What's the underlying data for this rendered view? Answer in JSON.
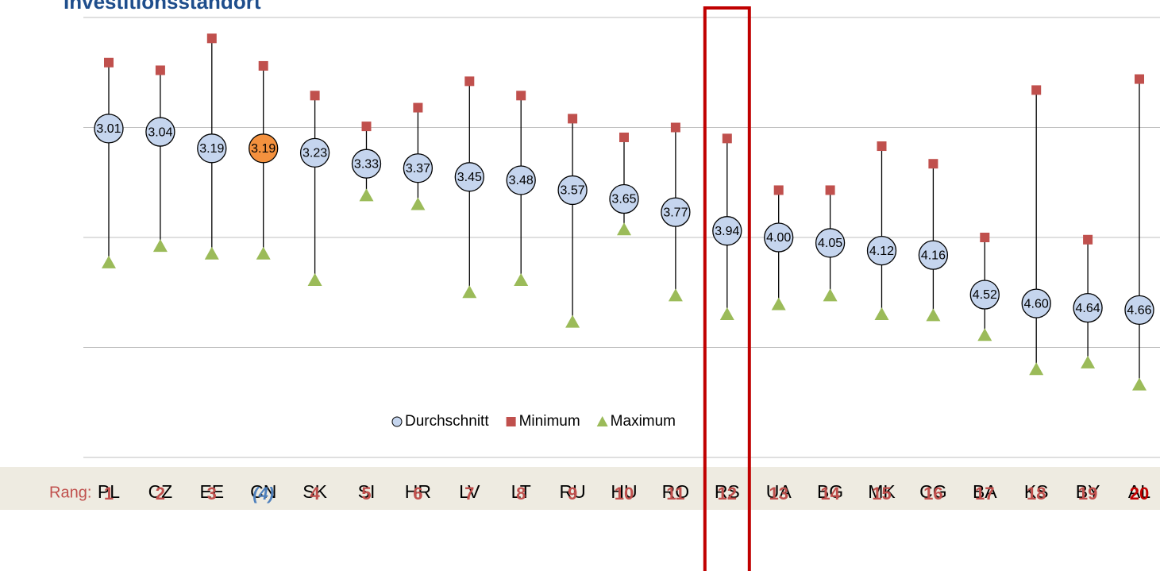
{
  "chart_data": {
    "type": "range-dot",
    "title": "Investitionsstandort",
    "categories": [
      "PL",
      "CZ",
      "EE",
      "CN",
      "SK",
      "SI",
      "HR",
      "LV",
      "LT",
      "RU",
      "HU",
      "RO",
      "RS",
      "UA",
      "BG",
      "MK",
      "CG",
      "BA",
      "KS",
      "BY",
      "AL"
    ],
    "series": [
      {
        "name": "Durchschnitt",
        "color": "#c5d5ee",
        "marker": "circle",
        "point_colors": [
          "#c5d5ee",
          "#c5d5ee",
          "#c5d5ee",
          "#f4913e",
          "#c5d5ee",
          "#c5d5ee",
          "#c5d5ee",
          "#c5d5ee",
          "#c5d5ee",
          "#c5d5ee",
          "#c5d5ee",
          "#c5d5ee",
          "#c5d5ee",
          "#c5d5ee",
          "#c5d5ee",
          "#c5d5ee",
          "#c5d5ee",
          "#c5d5ee",
          "#c5d5ee",
          "#c5d5ee",
          "#c5d5ee"
        ],
        "values": [
          3.01,
          3.04,
          3.19,
          3.19,
          3.23,
          3.33,
          3.37,
          3.45,
          3.48,
          3.57,
          3.65,
          3.77,
          3.94,
          4.0,
          4.05,
          4.12,
          4.16,
          4.52,
          4.6,
          4.64,
          4.66
        ],
        "value_labels": [
          "3.01",
          "3.04",
          "3.19",
          "3.19",
          "3.23",
          "3.33",
          "3.37",
          "3.45",
          "3.48",
          "3.57",
          "3.65",
          "3.77",
          "3.94",
          "4.00",
          "4.05",
          "4.12",
          "4.16",
          "4.52",
          "4.60",
          "4.64",
          "4.66"
        ]
      },
      {
        "name": "Minimum",
        "color": "#c0504d",
        "marker": "square",
        "values": [
          2.41,
          2.48,
          2.19,
          2.44,
          2.71,
          2.99,
          2.82,
          2.58,
          2.71,
          2.92,
          3.09,
          3.0,
          3.1,
          3.57,
          3.57,
          3.17,
          3.33,
          4.0,
          2.66,
          4.02,
          2.56
        ]
      },
      {
        "name": "Maximum",
        "color": "#9bbb59",
        "marker": "triangle",
        "values": [
          4.23,
          4.08,
          4.15,
          4.15,
          4.39,
          3.62,
          3.7,
          4.5,
          4.39,
          4.77,
          3.93,
          4.53,
          4.7,
          4.61,
          4.53,
          4.7,
          4.71,
          4.89,
          5.2,
          5.14,
          5.34
        ]
      }
    ],
    "ylim": [
      2,
      6
    ],
    "y_inverted": true,
    "yticks": [
      2,
      3,
      4,
      5,
      6
    ],
    "grid": true,
    "legend": "bottom",
    "rank_label": "Rang:",
    "ranks": [
      "1",
      "2",
      "3",
      "(4)",
      "4",
      "5",
      "6",
      "7",
      "8",
      "9",
      "10",
      "11",
      "12",
      "13",
      "14",
      "15",
      "16",
      "17",
      "18",
      "19",
      "20"
    ],
    "rank_colors": [
      "#c0504d",
      "#c0504d",
      "#c0504d",
      "#4f81bd",
      "#c0504d",
      "#c0504d",
      "#c0504d",
      "#c0504d",
      "#c0504d",
      "#c0504d",
      "#c0504d",
      "#c0504d",
      "#c0504d",
      "#c0504d",
      "#c0504d",
      "#c0504d",
      "#c0504d",
      "#c0504d",
      "#c0504d",
      "#c0504d",
      "#c00000"
    ],
    "highlight": "RS",
    "highlight_color": "#c00000"
  }
}
